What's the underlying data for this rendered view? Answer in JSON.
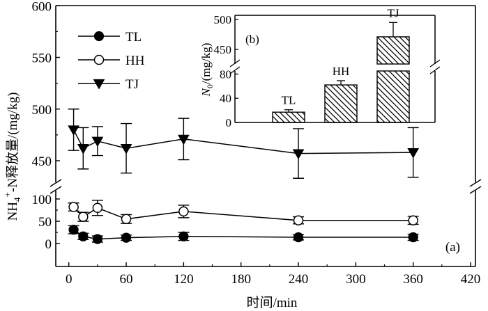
{
  "chart_data": [
    {
      "panel": "(a)",
      "type": "line",
      "xlabel": "时间/min",
      "ylabel": "NH4+-N释放量/(mg/kg)",
      "x_ticks": [
        "0",
        "60",
        "120",
        "180",
        "240",
        "300",
        "360",
        "420"
      ],
      "xlim": [
        -10,
        420
      ],
      "y_break": true,
      "y_upper_ticks": [
        "450",
        "500",
        "550",
        "600"
      ],
      "y_upper_range": [
        425,
        600
      ],
      "y_lower_ticks": [
        "0",
        "50",
        "100"
      ],
      "y_lower_range": [
        -50,
        100
      ],
      "x": [
        5,
        15,
        30,
        60,
        120,
        240,
        360
      ],
      "series": [
        {
          "name": "TL",
          "marker": "filled-circle",
          "values": [
            31,
            16,
            10,
            13,
            16,
            14,
            14
          ],
          "errors": [
            9,
            7,
            7,
            6,
            9,
            6,
            7
          ]
        },
        {
          "name": "HH",
          "marker": "open-circle",
          "values": [
            82,
            60,
            80,
            55,
            72,
            52,
            52
          ],
          "errors": [
            9,
            10,
            17,
            10,
            14,
            8,
            9
          ]
        },
        {
          "name": "TJ",
          "marker": "filled-triangle-down",
          "values": [
            480,
            462,
            469,
            462,
            471,
            457,
            458
          ],
          "errors": [
            20,
            20,
            14,
            24,
            20,
            24,
            24
          ]
        }
      ]
    },
    {
      "panel": "(b)",
      "type": "bar",
      "ylabel": "N0/(mg/kg)",
      "ylabel_main": "N",
      "ylabel_sub": "0",
      "ylabel_rest": "/(mg/kg)",
      "categories": [
        "TL",
        "HH",
        "TJ"
      ],
      "values": [
        17,
        62,
        471
      ],
      "errors": [
        4,
        7,
        24
      ],
      "y_break": true,
      "y_upper_ticks": [
        "450",
        "500"
      ],
      "y_lower_ticks": [
        "0",
        "40",
        "80"
      ]
    }
  ],
  "ylabel_parts": {
    "a": "NH",
    "sub": "4",
    "sup": "+",
    "b": "-N释放量/(mg/kg)"
  },
  "xlabel_text": "时间/min"
}
